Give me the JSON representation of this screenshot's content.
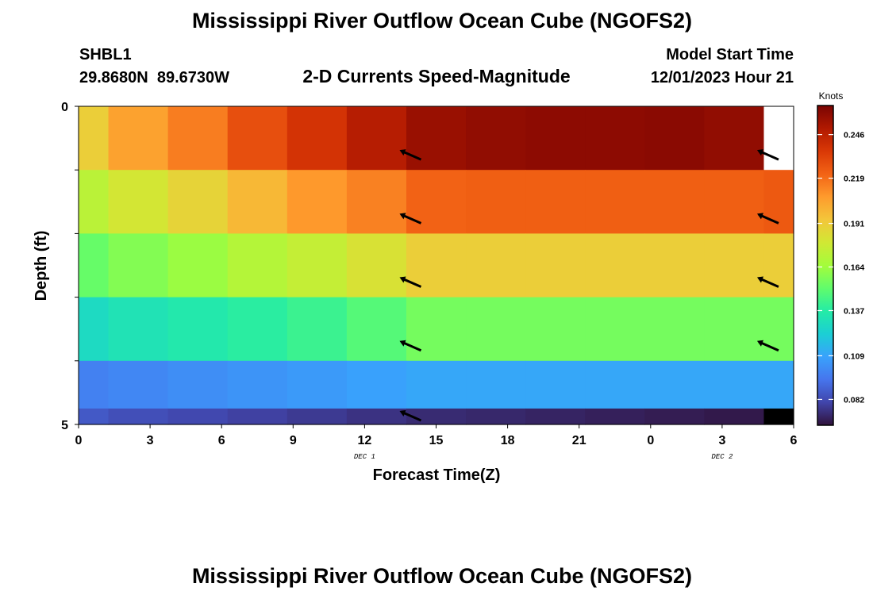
{
  "header": {
    "title": "Mississippi River Outflow Ocean Cube (NGOFS2)",
    "station_id": "SHBL1",
    "station_coords": "29.8680N  89.6730W",
    "subtitle": "2-D Currents Speed-Magnitude",
    "model_start_label": "Model Start Time",
    "model_start_value": "12/01/2023 Hour 21"
  },
  "footer": {
    "title_repeat": "Mississippi River Outflow Ocean Cube (NGOFS2)"
  },
  "chart_data": {
    "type": "heatmap",
    "title": "2-D Currents Speed-Magnitude",
    "xlabel": "Forecast Time(Z)",
    "ylabel": "Depth (ft)",
    "x_ticks": [
      "0",
      "3",
      "6",
      "9",
      "12",
      "15",
      "18",
      "21",
      "0",
      "3",
      "6"
    ],
    "date_labels": [
      {
        "label": "DEC 1",
        "at_hour": 12
      },
      {
        "label": "DEC 2",
        "at_hour": 27
      }
    ],
    "xlim_hours": [
      0,
      30
    ],
    "y_ticks": [
      "0",
      "5"
    ],
    "ylim_ft": [
      0,
      5
    ],
    "colorbar": {
      "units": "Knots",
      "ticks": [
        "0.246",
        "0.219",
        "0.191",
        "0.164",
        "0.137",
        "0.109",
        "0.082"
      ],
      "range": [
        0.066,
        0.264
      ],
      "colors": [
        "#30123b",
        "#4145ab",
        "#4675ed",
        "#39a2fc",
        "#1bcfd4",
        "#24eca6",
        "#61fc6c",
        "#a4fc3b",
        "#d1e834",
        "#f3c63a",
        "#fe9b2d",
        "#f36315",
        "#d93806",
        "#b11901",
        "#7a0402"
      ]
    },
    "time_hours": [
      0,
      2.5,
      5,
      7.5,
      10,
      12.5,
      15,
      17.5,
      20,
      22.5,
      25,
      27.5,
      30
    ],
    "depth_layers_ft": [
      0.5,
      1.5,
      2.5,
      3.5,
      4.5,
      5.0
    ],
    "speed_knots": [
      [
        0.19,
        0.205,
        0.215,
        0.228,
        0.238,
        0.248,
        0.256,
        0.258,
        0.259,
        0.259,
        0.26,
        0.258,
        null
      ],
      [
        0.172,
        0.18,
        0.188,
        0.198,
        0.208,
        0.214,
        0.222,
        0.223,
        0.223,
        0.223,
        0.223,
        0.223,
        0.225
      ],
      [
        0.152,
        0.158,
        0.163,
        0.17,
        0.175,
        0.182,
        0.19,
        0.19,
        0.19,
        0.19,
        0.19,
        0.19,
        0.19
      ],
      [
        0.128,
        0.132,
        0.135,
        0.138,
        0.142,
        0.148,
        0.155,
        0.155,
        0.155,
        0.155,
        0.155,
        0.155,
        0.155
      ],
      [
        0.098,
        0.1,
        0.102,
        0.104,
        0.106,
        0.108,
        0.11,
        0.11,
        0.11,
        0.11,
        0.11,
        0.11,
        0.11
      ],
      [
        0.086,
        0.083,
        0.081,
        0.079,
        0.077,
        0.075,
        0.073,
        0.072,
        0.071,
        0.07,
        0.069,
        0.068,
        null
      ]
    ],
    "vectors": [
      {
        "hour": 14,
        "depth_ft": 0.8,
        "dir": "WNW"
      },
      {
        "hour": 29,
        "depth_ft": 0.8,
        "dir": "WNW"
      },
      {
        "hour": 14,
        "depth_ft": 1.8,
        "dir": "WNW"
      },
      {
        "hour": 29,
        "depth_ft": 1.8,
        "dir": "WNW"
      },
      {
        "hour": 14,
        "depth_ft": 2.8,
        "dir": "WNW"
      },
      {
        "hour": 29,
        "depth_ft": 2.8,
        "dir": "WNW"
      },
      {
        "hour": 14,
        "depth_ft": 3.8,
        "dir": "WNW"
      },
      {
        "hour": 29,
        "depth_ft": 3.8,
        "dir": "WNW"
      },
      {
        "hour": 14,
        "depth_ft": 4.9,
        "dir": "WNW"
      }
    ]
  }
}
